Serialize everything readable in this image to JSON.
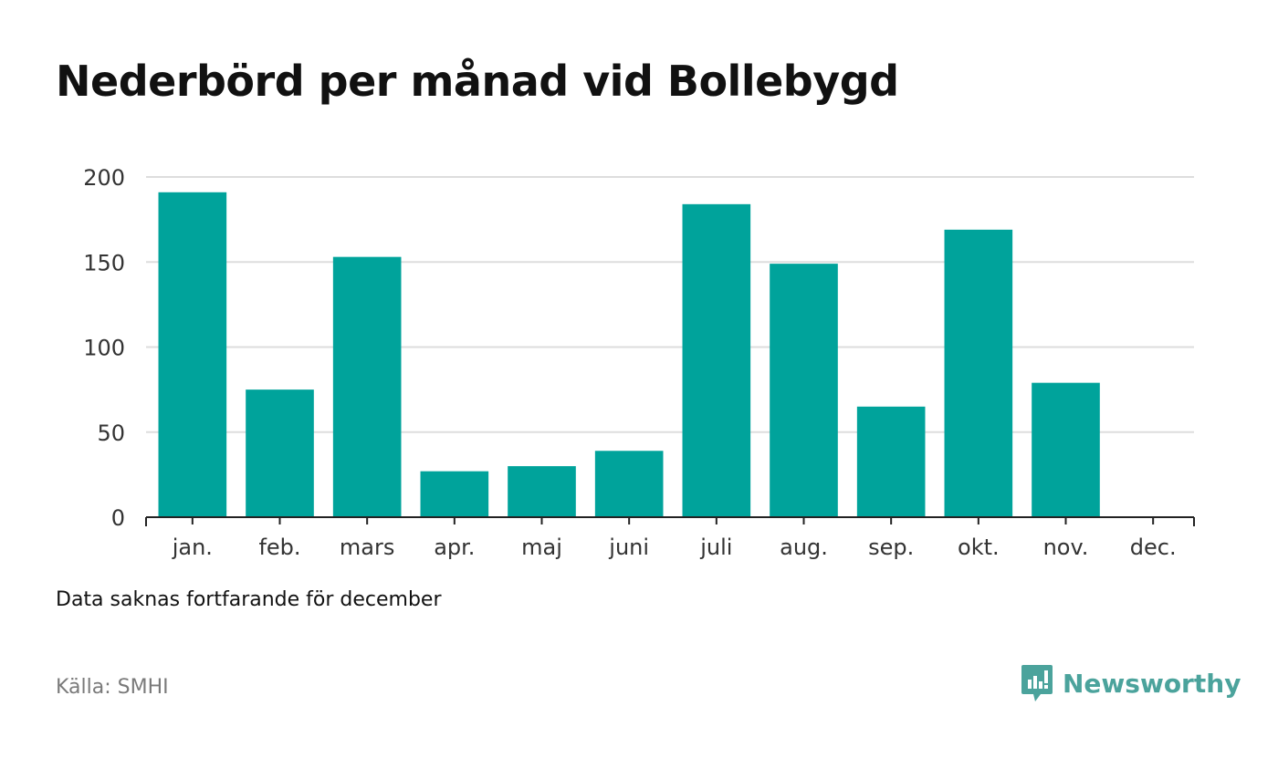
{
  "title": "Nederbörd per månad vid Bollebygd",
  "note": "Data saknas fortfarande för december",
  "source": "Källa: SMHI",
  "logo": {
    "text": "Newsworthy",
    "icon": "newsworthy-logo-icon",
    "color": "#4ba39c"
  },
  "colors": {
    "bar": "#00a39b",
    "grid": "#dddddd",
    "axis": "#222222",
    "tick_label": "#333333"
  },
  "chart_data": {
    "type": "bar",
    "title": "Nederbörd per månad vid Bollebygd",
    "xlabel": "",
    "ylabel": "",
    "categories": [
      "jan.",
      "feb.",
      "mars",
      "apr.",
      "maj",
      "juni",
      "juli",
      "aug.",
      "sep.",
      "okt.",
      "nov.",
      "dec."
    ],
    "values": [
      191,
      75,
      153,
      27,
      30,
      39,
      184,
      149,
      65,
      169,
      79,
      null
    ],
    "ylim": [
      0,
      200
    ],
    "yticks": [
      0,
      50,
      100,
      150,
      200
    ],
    "grid": true,
    "legend": "none"
  }
}
